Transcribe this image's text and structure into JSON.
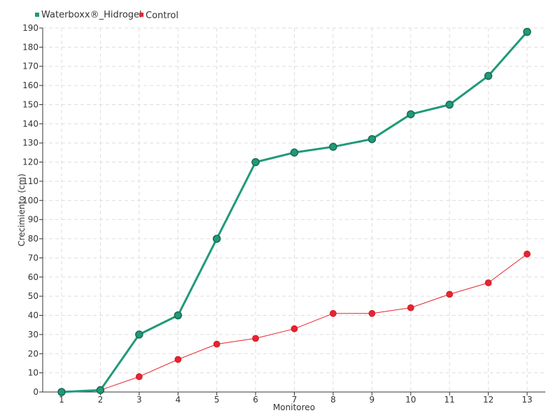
{
  "chart_data": {
    "type": "line",
    "title": "",
    "xlabel": "Monitoreo",
    "ylabel": "Crecimiento (cm)",
    "categories": [
      "1",
      "2",
      "3",
      "4",
      "5",
      "6",
      "7",
      "8",
      "9",
      "10",
      "11",
      "12",
      "13"
    ],
    "ylim": [
      0,
      190
    ],
    "y_ticks": [
      0,
      10,
      20,
      30,
      40,
      50,
      60,
      70,
      80,
      90,
      100,
      110,
      120,
      130,
      140,
      150,
      160,
      170,
      180,
      190
    ],
    "grid": true,
    "legend_position": "top-left",
    "series": [
      {
        "name": "Waterboxx®_Hidrogel",
        "color": "#1f9a78",
        "values": [
          0,
          1,
          30,
          40,
          80,
          120,
          125,
          128,
          132,
          145,
          150,
          165,
          188
        ]
      },
      {
        "name": "Control",
        "color": "#e8232f",
        "values": [
          0,
          1,
          8,
          17,
          25,
          28,
          33,
          41,
          41,
          44,
          51,
          57,
          72
        ]
      }
    ]
  }
}
